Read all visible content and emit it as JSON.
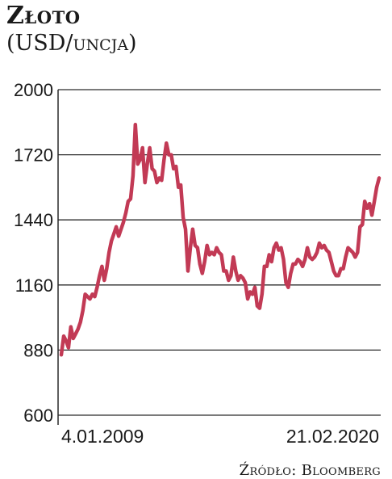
{
  "chart_data": {
    "type": "line",
    "title": "Złoto",
    "subtitle_prefix": "(USD/",
    "subtitle_unit": "uncja",
    "subtitle_suffix": ")",
    "source": "Źródło: Bloomberg",
    "ylim": [
      600,
      2000
    ],
    "yticks": [
      2000,
      1720,
      1440,
      1160,
      880,
      600
    ],
    "x_start_label": "4.01.2009",
    "x_end_label": "21.02.2020",
    "grid": true,
    "line_color": "#c23a55",
    "series": [
      {
        "x": [
          "2009-01",
          "2009-02",
          "2009-03",
          "2009-04",
          "2009-05",
          "2009-06",
          "2009-07",
          "2009-08",
          "2009-09",
          "2009-10",
          "2009-11",
          "2009-12",
          "2010-01",
          "2010-02",
          "2010-03",
          "2010-04",
          "2010-05",
          "2010-06",
          "2010-07",
          "2010-08",
          "2010-09",
          "2010-10",
          "2010-11",
          "2010-12",
          "2011-01",
          "2011-02",
          "2011-03",
          "2011-04",
          "2011-05",
          "2011-06",
          "2011-07",
          "2011-08",
          "2011-09",
          "2011-10",
          "2011-11",
          "2011-12",
          "2012-01",
          "2012-02",
          "2012-03",
          "2012-04",
          "2012-05",
          "2012-06",
          "2012-07",
          "2012-08",
          "2012-09",
          "2012-10",
          "2012-11",
          "2012-12",
          "2013-01",
          "2013-02",
          "2013-03",
          "2013-04",
          "2013-05",
          "2013-06",
          "2013-07",
          "2013-08",
          "2013-09",
          "2013-10",
          "2013-11",
          "2013-12",
          "2014-01",
          "2014-02",
          "2014-03",
          "2014-04",
          "2014-05",
          "2014-06",
          "2014-07",
          "2014-08",
          "2014-09",
          "2014-10",
          "2014-11",
          "2014-12",
          "2015-01",
          "2015-02",
          "2015-03",
          "2015-04",
          "2015-05",
          "2015-06",
          "2015-07",
          "2015-08",
          "2015-09",
          "2015-10",
          "2015-11",
          "2015-12",
          "2016-01",
          "2016-02",
          "2016-03",
          "2016-04",
          "2016-05",
          "2016-06",
          "2016-07",
          "2016-08",
          "2016-09",
          "2016-10",
          "2016-11",
          "2016-12",
          "2017-01",
          "2017-02",
          "2017-03",
          "2017-04",
          "2017-05",
          "2017-06",
          "2017-07",
          "2017-08",
          "2017-09",
          "2017-10",
          "2017-11",
          "2017-12",
          "2018-01",
          "2018-02",
          "2018-03",
          "2018-04",
          "2018-05",
          "2018-06",
          "2018-07",
          "2018-08",
          "2018-09",
          "2018-10",
          "2018-11",
          "2018-12",
          "2019-01",
          "2019-02",
          "2019-03",
          "2019-04",
          "2019-05",
          "2019-06",
          "2019-07",
          "2019-08",
          "2019-09",
          "2019-10",
          "2019-11",
          "2019-12",
          "2020-01",
          "2020-02"
        ],
        "values": [
          860,
          940,
          920,
          890,
          980,
          930,
          950,
          970,
          1000,
          1050,
          1120,
          1110,
          1100,
          1120,
          1110,
          1150,
          1200,
          1240,
          1180,
          1230,
          1300,
          1350,
          1380,
          1410,
          1370,
          1400,
          1430,
          1470,
          1520,
          1530,
          1630,
          1850,
          1680,
          1700,
          1750,
          1600,
          1680,
          1750,
          1660,
          1650,
          1600,
          1620,
          1610,
          1700,
          1770,
          1720,
          1720,
          1660,
          1670,
          1580,
          1590,
          1450,
          1400,
          1220,
          1320,
          1400,
          1330,
          1320,
          1250,
          1210,
          1260,
          1330,
          1290,
          1300,
          1290,
          1320,
          1300,
          1290,
          1220,
          1220,
          1180,
          1200,
          1280,
          1220,
          1180,
          1200,
          1190,
          1170,
          1100,
          1130,
          1120,
          1150,
          1070,
          1060,
          1120,
          1240,
          1240,
          1290,
          1260,
          1320,
          1340,
          1310,
          1320,
          1270,
          1170,
          1150,
          1210,
          1250,
          1250,
          1270,
          1260,
          1240,
          1270,
          1320,
          1280,
          1270,
          1280,
          1300,
          1340,
          1320,
          1330,
          1310,
          1300,
          1260,
          1220,
          1200,
          1200,
          1230,
          1230,
          1280,
          1320,
          1310,
          1300,
          1280,
          1300,
          1410,
          1420,
          1520,
          1490,
          1510,
          1460,
          1520,
          1580,
          1620
        ]
      }
    ]
  }
}
